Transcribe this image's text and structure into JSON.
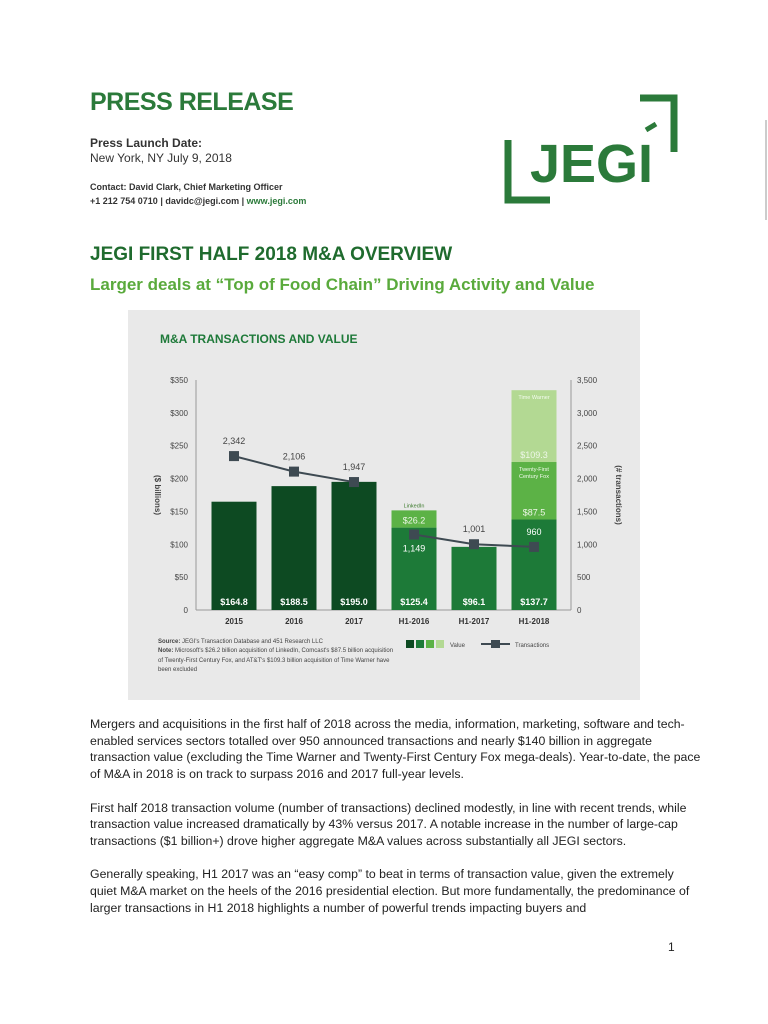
{
  "header": {
    "title": "PRESS RELEASE",
    "launch_label": "Press Launch Date:",
    "location_date": "New York, NY July 9, 2018",
    "contact": "Contact: David Clark, Chief Marketing Officer",
    "phone_email": "+1 212 754 0710 | davidc@jegi.com | ",
    "website": "www.jegi.com",
    "logo_text": "JEGI"
  },
  "headline": "JEGI FIRST HALF 2018 M&A OVERVIEW",
  "subheadline": "Larger deals at “Top of Food Chain” Driving Activity and Value",
  "chart_data": {
    "type": "bar",
    "title": "M&A TRANSACTIONS AND VALUE",
    "categories": [
      "2015",
      "2016",
      "2017",
      "H1-2016",
      "H1-2017",
      "H1-2018"
    ],
    "ylabel": "($ billions)",
    "y2label": "(# transactions)",
    "ylim": [
      0,
      350
    ],
    "y2lim": [
      0,
      3500
    ],
    "yticks": [
      "0",
      "$50",
      "$100",
      "$150",
      "$200",
      "$250",
      "$300",
      "$350"
    ],
    "y2ticks": [
      "0",
      "500",
      "1,000",
      "1,500",
      "2,000",
      "2,500",
      "3,000",
      "3,500"
    ],
    "series": [
      {
        "name": "Value",
        "values": [
          164.8,
          188.5,
          195.0,
          125.4,
          96.1,
          137.7
        ],
        "labels": [
          "$164.8",
          "$188.5",
          "$195.0",
          "$125.4",
          "$96.1",
          "$137.7"
        ]
      },
      {
        "values": [
          0,
          0,
          0,
          26.2,
          0,
          87.5
        ],
        "labels": [
          "",
          "",
          "",
          "$26.2",
          "",
          "$87.5"
        ],
        "deal_labels": [
          "",
          "",
          "",
          "LinkedIn",
          "",
          "Twenty-First Century Fox"
        ]
      },
      {
        "values": [
          0,
          0,
          0,
          0,
          0,
          109.3
        ],
        "labels": [
          "",
          "",
          "",
          "",
          "",
          "$109.3"
        ],
        "deal_labels": [
          "",
          "",
          "",
          "",
          "",
          "Time Warner"
        ]
      },
      {
        "name": "Transactions",
        "type": "line",
        "values": [
          2342,
          2106,
          1947,
          1149,
          1001,
          960
        ],
        "labels": [
          "2,342",
          "2,106",
          "1,947",
          "1,149",
          "1,001",
          "960"
        ]
      }
    ],
    "colors": {
      "annual": "#0d4a22",
      "h1_base": "#1d7a38",
      "deal_mid": "#5cb246",
      "deal_light": "#b3d993",
      "line": "#3e4a52",
      "background": "#e9e9e9"
    },
    "legend": {
      "value": "Value",
      "transactions": "Transactions",
      "placement": "bottom-right"
    },
    "source_label": "Source:",
    "source": " JEGI's Transaction Database and 451 Research LLC",
    "note_label": "Note:",
    "note": " Microsoft's $26.2 billion acquisition of LinkedIn, Comcast's $87.5 billion acquisition of Twenty-First Century Fox, and AT&T's $109.3 billion acquisition of Time Warner have been excluded"
  },
  "paragraphs": [
    "Mergers and acquisitions in the first half of 2018 across the media, information, marketing, software and tech-enabled services sectors totalled over 950 announced transactions and nearly $140 billion in aggregate transaction value (excluding the Time Warner and Twenty-First Century Fox mega-deals).  Year-to-date, the pace of M&A in 2018 is on track to surpass 2016 and 2017 full-year levels.",
    "First half 2018 transaction volume (number of transactions) declined modestly, in line with recent trends, while transaction value increased dramatically by 43% versus 2017.  A notable increase in the number of large-cap transactions ($1 billion+) drove higher aggregate M&A values across substantially all JEGI sectors.",
    "Generally speaking, H1 2017 was an “easy comp” to beat in terms of transaction value, given the extremely quiet M&A market on the heels of the 2016 presidential election.  But more fundamentally, the predominance of larger transactions in H1 2018 highlights a number of powerful trends impacting buyers and"
  ],
  "page_number": "1"
}
